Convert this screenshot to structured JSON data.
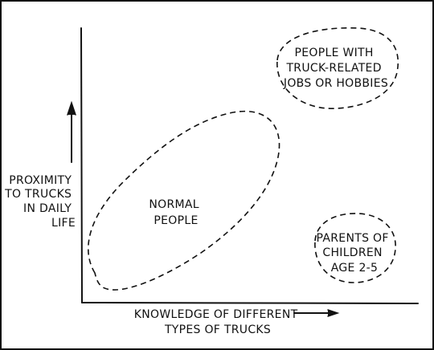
{
  "axes": {
    "y_label": [
      "PROXIMITY",
      "TO TRUCKS",
      "IN DAILY",
      "LIFE"
    ],
    "x_label": [
      "KNOWLEDGE OF DIFFERENT",
      "TYPES OF TRUCKS"
    ]
  },
  "groups": {
    "normal": [
      "NORMAL",
      "PEOPLE"
    ],
    "truck_jobs": [
      "PEOPLE WITH",
      "TRUCK-RELATED",
      "JOBS OR HOBBIES"
    ],
    "parents": [
      "PARENTS OF",
      "CHILDREN",
      "AGE 2-5"
    ]
  }
}
